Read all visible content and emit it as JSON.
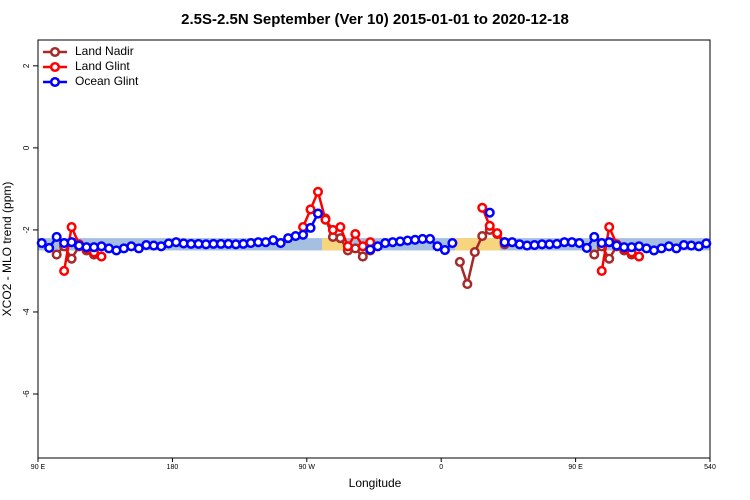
{
  "chart_data": {
    "type": "line",
    "title": "2.5S-2.5N September (Ver 10)   2015-01-01 to 2020-12-18",
    "xlabel": "Longitude",
    "ylabel": "XCO2 - MLO trend (ppm)",
    "xlim": [
      90,
      540
    ],
    "ylim": [
      2.63,
      -7.56
    ],
    "xticks": [
      {
        "value": 90,
        "label": "90 E"
      },
      180,
      {
        "value": 270,
        "label": "90 W"
      },
      {
        "value": 360,
        "label": "0"
      },
      {
        "value": 450,
        "label": "90 E"
      },
      540
    ],
    "yticks": [
      2,
      0,
      -2,
      -4,
      -6
    ],
    "legend": "top-left",
    "bands": [
      {
        "xlim": [
          90,
          540
        ],
        "ylim": [
          -2.2,
          -2.5
        ],
        "color": "#a4bfe0"
      },
      {
        "xlim": [
          280.2,
          295.6
        ],
        "ylim": [
          -2.2,
          -2.5
        ],
        "color": "#f6d57e"
      },
      {
        "xlim": [
          369.2,
          399.4
        ],
        "ylim": [
          -2.2,
          -2.5
        ],
        "color": "#f6d57e"
      }
    ],
    "x": [
      92.5,
      97.5,
      102.5,
      107.5,
      112.5,
      117.5,
      122.5,
      127.5,
      132.5,
      137.5,
      142.5,
      147.5,
      152.5,
      157.5,
      162.5,
      167.5,
      172.5,
      177.5,
      182.5,
      187.5,
      192.5,
      197.5,
      202.5,
      207.5,
      212.5,
      217.5,
      222.5,
      227.5,
      232.5,
      237.5,
      242.5,
      247.5,
      252.5,
      257.5,
      262.5,
      267.5,
      272.5,
      277.5,
      282.5,
      287.5,
      292.5,
      297.5,
      302.5,
      307.5,
      312.5,
      317.5,
      322.5,
      327.5,
      332.5,
      337.5,
      342.5,
      347.5,
      352.5,
      357.5,
      362.5,
      367.5,
      372.5,
      377.5,
      382.5,
      387.5,
      392.5,
      397.5,
      402.5,
      407.5,
      412.5,
      417.5,
      422.5,
      427.5,
      432.5,
      437.5,
      442.5,
      447.5,
      452.5,
      457.5,
      462.5,
      467.5,
      472.5,
      477.5,
      482.5,
      487.5,
      492.5,
      497.5,
      502.5,
      507.5,
      512.5,
      517.5,
      522.5,
      527.5,
      532.5,
      537.5
    ],
    "series": [
      {
        "name": "Land Nadir",
        "color": "#a52a2a",
        "values": [
          null,
          null,
          -2.6,
          -2.4,
          -2.7,
          -2.4,
          -2.5,
          -2.6,
          null,
          null,
          null,
          null,
          null,
          null,
          null,
          null,
          null,
          null,
          null,
          null,
          null,
          null,
          null,
          null,
          null,
          null,
          null,
          null,
          null,
          null,
          null,
          null,
          null,
          null,
          null,
          null,
          null,
          -1.6,
          -1.72,
          -2.17,
          -2.2,
          -2.5,
          -2.45,
          -2.65,
          -2.5,
          null,
          null,
          null,
          null,
          null,
          null,
          null,
          null,
          null,
          null,
          null,
          -2.78,
          -3.32,
          -2.54,
          -2.15,
          -2.0,
          -2.1,
          -2.35,
          null,
          null,
          null,
          null,
          null,
          null,
          null,
          null,
          null,
          null,
          null,
          -2.6,
          -2.4,
          -2.7,
          -2.4,
          -2.5,
          -2.6,
          null,
          null,
          null,
          null,
          null,
          null,
          null,
          null,
          null,
          null
        ]
      },
      {
        "name": "Land Glint",
        "color": "#ff0000",
        "values": [
          null,
          null,
          null,
          -3.0,
          -1.93,
          -2.35,
          -2.45,
          -2.55,
          -2.65,
          null,
          null,
          null,
          null,
          null,
          null,
          null,
          null,
          null,
          null,
          null,
          null,
          null,
          null,
          null,
          null,
          null,
          null,
          null,
          null,
          null,
          null,
          null,
          null,
          null,
          null,
          -1.93,
          -1.5,
          -1.07,
          -1.75,
          -2.0,
          -1.93,
          -2.4,
          -2.1,
          -2.4,
          -2.3,
          null,
          null,
          null,
          null,
          null,
          null,
          null,
          null,
          null,
          null,
          null,
          null,
          null,
          null,
          -1.46,
          -1.9,
          -2.08,
          -2.3,
          null,
          null,
          null,
          null,
          null,
          null,
          null,
          null,
          null,
          null,
          null,
          null,
          -3.0,
          -1.93,
          -2.35,
          -2.45,
          -2.55,
          -2.65,
          null,
          null,
          null,
          null,
          null,
          null,
          null,
          null,
          null
        ]
      },
      {
        "name": "Ocean Glint",
        "color": "#0000ff",
        "values": [
          -2.32,
          -2.44,
          -2.17,
          -2.32,
          -2.3,
          -2.38,
          -2.42,
          -2.42,
          -2.4,
          -2.45,
          -2.5,
          -2.45,
          -2.4,
          -2.45,
          -2.37,
          -2.38,
          -2.4,
          -2.33,
          -2.3,
          -2.33,
          -2.34,
          -2.34,
          -2.35,
          -2.34,
          -2.34,
          -2.34,
          -2.35,
          -2.34,
          -2.32,
          -2.3,
          -2.3,
          -2.25,
          -2.32,
          -2.2,
          -2.15,
          -2.12,
          -1.95,
          -1.6,
          null,
          null,
          null,
          null,
          null,
          null,
          -2.48,
          -2.4,
          -2.32,
          -2.3,
          -2.28,
          -2.26,
          -2.24,
          -2.22,
          -2.22,
          -2.4,
          -2.49,
          -2.32,
          null,
          null,
          null,
          null,
          -1.58,
          null,
          -2.3,
          -2.3,
          -2.35,
          -2.38,
          -2.37,
          -2.35,
          -2.35,
          -2.34,
          -2.3,
          -2.3,
          -2.32,
          -2.44,
          -2.17,
          -2.32,
          -2.3,
          -2.38,
          -2.42,
          -2.42,
          -2.4,
          -2.45,
          -2.5,
          -2.45,
          -2.4,
          -2.45,
          -2.37,
          -2.38,
          -2.4,
          -2.33
        ]
      }
    ]
  }
}
